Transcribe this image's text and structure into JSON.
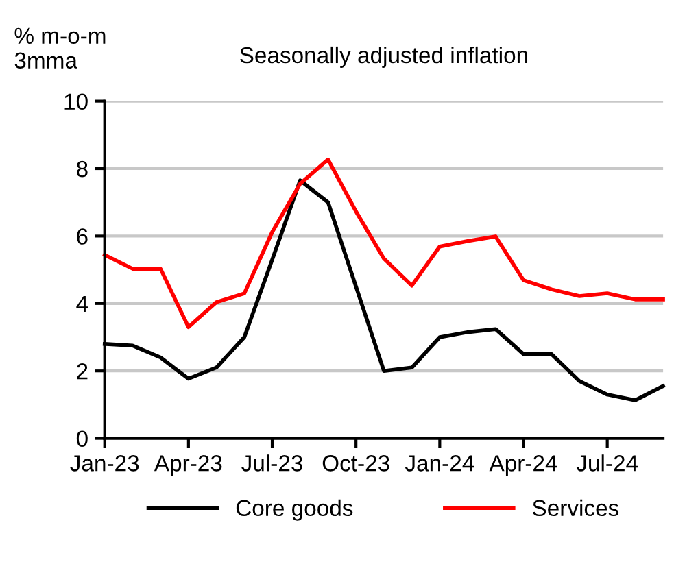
{
  "chart_data": {
    "type": "line",
    "title": "Seasonally adjusted inflation",
    "ylabel": "% m-o-m\n3mma",
    "x": [
      "2023-01",
      "2023-02",
      "2023-03",
      "2023-04",
      "2023-05",
      "2023-06",
      "2023-07",
      "2023-08",
      "2023-09",
      "2023-10",
      "2023-11",
      "2023-12",
      "2024-01",
      "2024-02",
      "2024-03",
      "2024-04",
      "2024-05",
      "2024-06",
      "2024-07",
      "2024-08",
      "2024-09"
    ],
    "series": [
      {
        "name": "Core goods",
        "color": "#000000",
        "values": [
          2.8,
          2.75,
          2.4,
          1.77,
          2.1,
          3.0,
          5.3,
          7.65,
          7.0,
          4.5,
          2.0,
          2.1,
          3.0,
          3.15,
          3.24,
          2.5,
          2.5,
          1.7,
          1.3,
          1.13,
          1.55
        ]
      },
      {
        "name": "Services",
        "color": "#ff0000",
        "values": [
          5.44,
          5.03,
          5.03,
          3.3,
          4.04,
          4.3,
          6.12,
          7.55,
          8.27,
          6.73,
          5.33,
          4.53,
          5.69,
          5.85,
          5.99,
          4.69,
          4.42,
          4.22,
          4.3,
          4.12,
          4.12
        ]
      }
    ],
    "xlim": [
      "2023-01",
      "2024-09"
    ],
    "xticks": [
      {
        "value": "2023-01",
        "label": "Jan-23"
      },
      {
        "value": "2023-04",
        "label": "Apr-23"
      },
      {
        "value": "2023-07",
        "label": "Jul-23"
      },
      {
        "value": "2023-10",
        "label": "Oct-23"
      },
      {
        "value": "2024-01",
        "label": "Jan-24"
      },
      {
        "value": "2024-04",
        "label": "Apr-24"
      },
      {
        "value": "2024-07",
        "label": "Jul-24"
      }
    ],
    "ylim": [
      0,
      10
    ],
    "yticks": [
      0,
      2,
      4,
      6,
      8,
      10
    ],
    "grid": "y",
    "legend": "bottom",
    "line_style": "solid",
    "marker": "none"
  }
}
